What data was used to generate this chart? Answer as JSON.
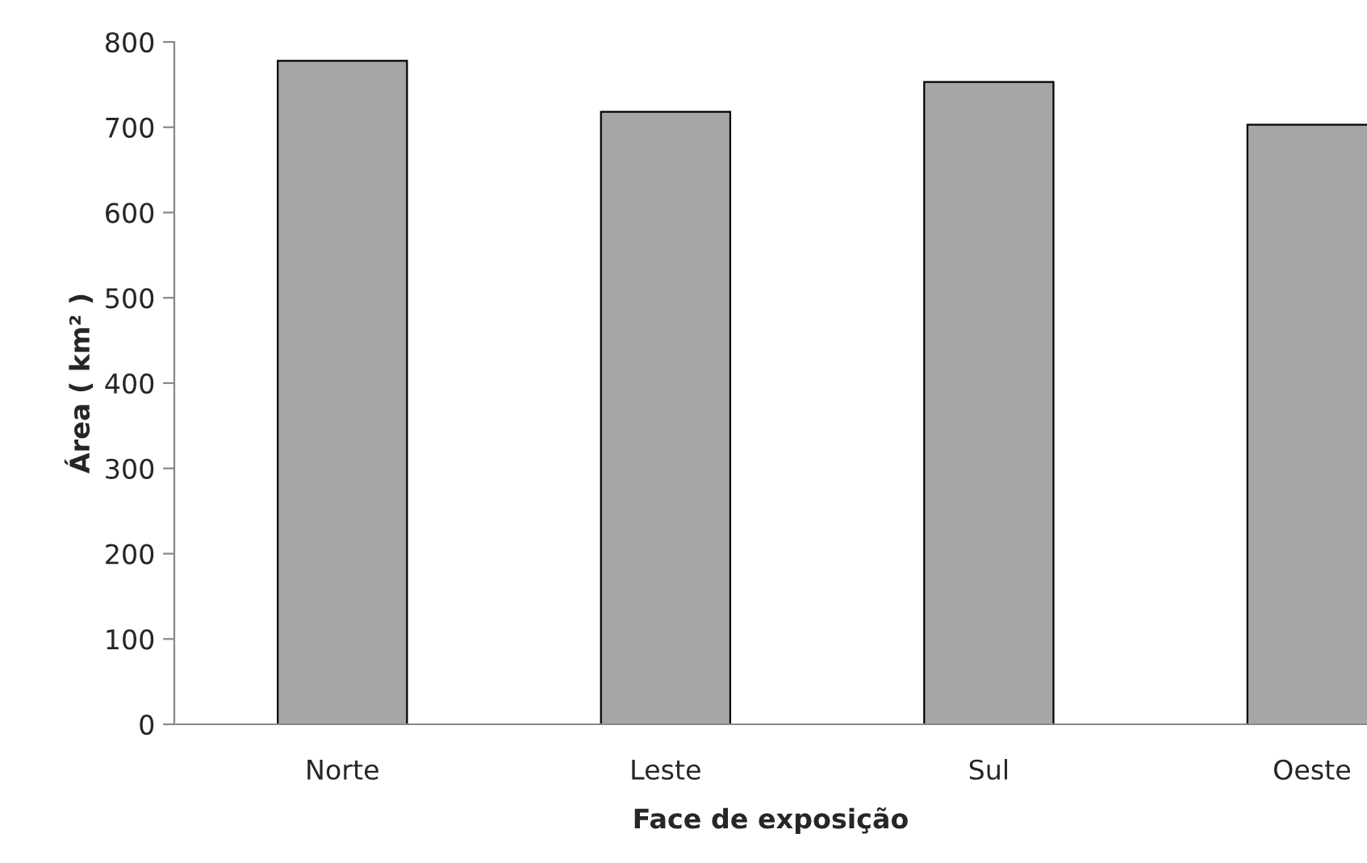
{
  "chart_data": {
    "type": "bar",
    "xlabel": "Face de exposição",
    "ylabel": "Área ( km² )",
    "categories": [
      "Norte",
      "Leste",
      "Sul",
      "Oeste"
    ],
    "values": [
      778,
      718,
      753,
      703
    ],
    "color": "#a6a6a6",
    "ylim": [
      0,
      800
    ],
    "yticks": [
      0,
      100,
      200,
      300,
      400,
      500,
      600,
      700,
      800
    ],
    "grid": false,
    "legend": false
  }
}
